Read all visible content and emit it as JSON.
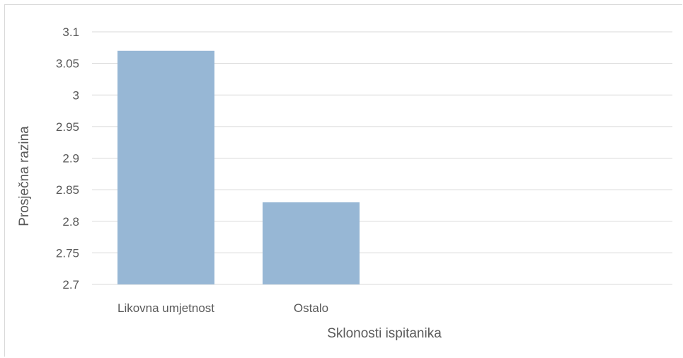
{
  "chart_data": {
    "type": "bar",
    "title": "",
    "xlabel": "Sklonosti ispitanika",
    "ylabel": "Prosječna razina",
    "categories": [
      "Likovna umjetnost",
      "Ostalo",
      "",
      ""
    ],
    "values": [
      3.07,
      2.83,
      null,
      null
    ],
    "ylim": [
      2.7,
      3.1
    ],
    "yticks": [
      "2.7",
      "2.75",
      "2.8",
      "2.85",
      "2.9",
      "2.95",
      "3",
      "3.05",
      "3.1"
    ],
    "grid": true,
    "legend": "none",
    "colors": {
      "bar": "#97b7d5",
      "grid": "#d9d9d9",
      "text": "#595959"
    }
  }
}
